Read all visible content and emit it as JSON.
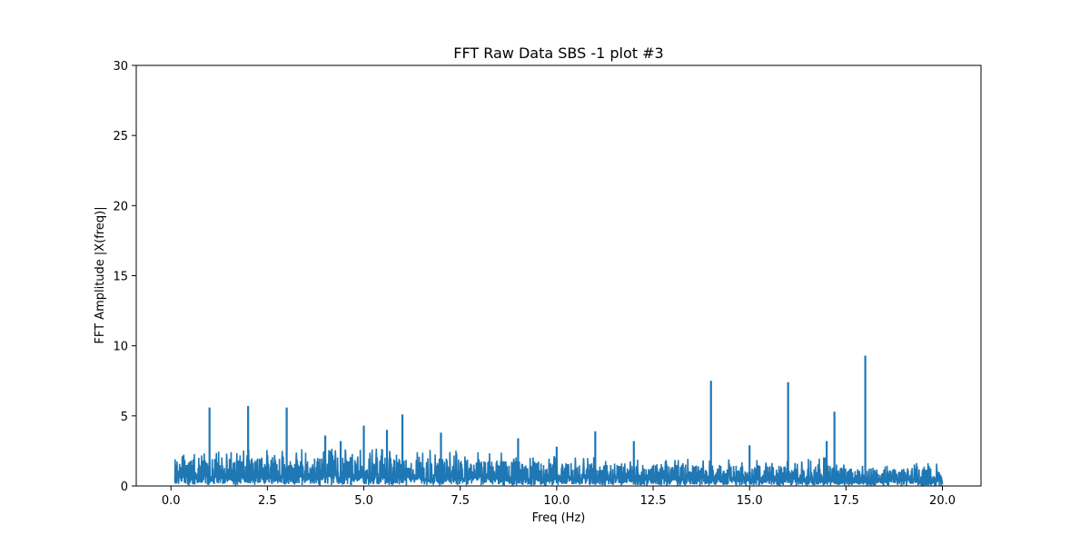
{
  "chart_data": {
    "type": "line",
    "title": "FFT Raw Data SBS -1 plot #3",
    "xlabel": "Freq (Hz)",
    "ylabel": "FFT Amplitude |X(freq)|",
    "xlim": [
      -0.9,
      21.0
    ],
    "ylim": [
      0,
      30
    ],
    "x_ticks": [
      0.0,
      2.5,
      5.0,
      7.5,
      10.0,
      12.5,
      15.0,
      17.5,
      20.0
    ],
    "x_tick_labels": [
      "0.0",
      "2.5",
      "5.0",
      "7.5",
      "10.0",
      "12.5",
      "15.0",
      "17.5",
      "20.0"
    ],
    "y_ticks": [
      0,
      5,
      10,
      15,
      20,
      25,
      30
    ],
    "y_tick_labels": [
      "0",
      "5",
      "10",
      "15",
      "20",
      "25",
      "30"
    ],
    "grid": false,
    "series": [
      {
        "color": "#1f77b4",
        "x_range": [
          0.1,
          20.0
        ],
        "noise_floor": [
          {
            "x": 0.1,
            "y": 1.9
          },
          {
            "x": 2.0,
            "y": 2.0
          },
          {
            "x": 5.0,
            "y": 2.1
          },
          {
            "x": 8.0,
            "y": 1.9
          },
          {
            "x": 10.0,
            "y": 1.7
          },
          {
            "x": 12.0,
            "y": 1.6
          },
          {
            "x": 14.0,
            "y": 1.5
          },
          {
            "x": 16.0,
            "y": 1.45
          },
          {
            "x": 17.0,
            "y": 1.6
          },
          {
            "x": 17.5,
            "y": 1.25
          },
          {
            "x": 20.0,
            "y": 1.3
          }
        ],
        "peaks": [
          {
            "x": 1.0,
            "y": 5.6
          },
          {
            "x": 2.0,
            "y": 5.7
          },
          {
            "x": 3.0,
            "y": 5.6
          },
          {
            "x": 4.0,
            "y": 3.6
          },
          {
            "x": 4.4,
            "y": 3.2
          },
          {
            "x": 5.0,
            "y": 4.3
          },
          {
            "x": 5.6,
            "y": 4.0
          },
          {
            "x": 6.0,
            "y": 5.1
          },
          {
            "x": 7.0,
            "y": 3.8
          },
          {
            "x": 9.0,
            "y": 3.4
          },
          {
            "x": 10.0,
            "y": 2.8
          },
          {
            "x": 11.0,
            "y": 3.9
          },
          {
            "x": 12.0,
            "y": 3.2
          },
          {
            "x": 14.0,
            "y": 7.5
          },
          {
            "x": 15.0,
            "y": 2.9
          },
          {
            "x": 16.0,
            "y": 7.4
          },
          {
            "x": 17.0,
            "y": 3.2
          },
          {
            "x": 17.2,
            "y": 5.3
          },
          {
            "x": 18.0,
            "y": 9.3
          }
        ]
      }
    ]
  }
}
